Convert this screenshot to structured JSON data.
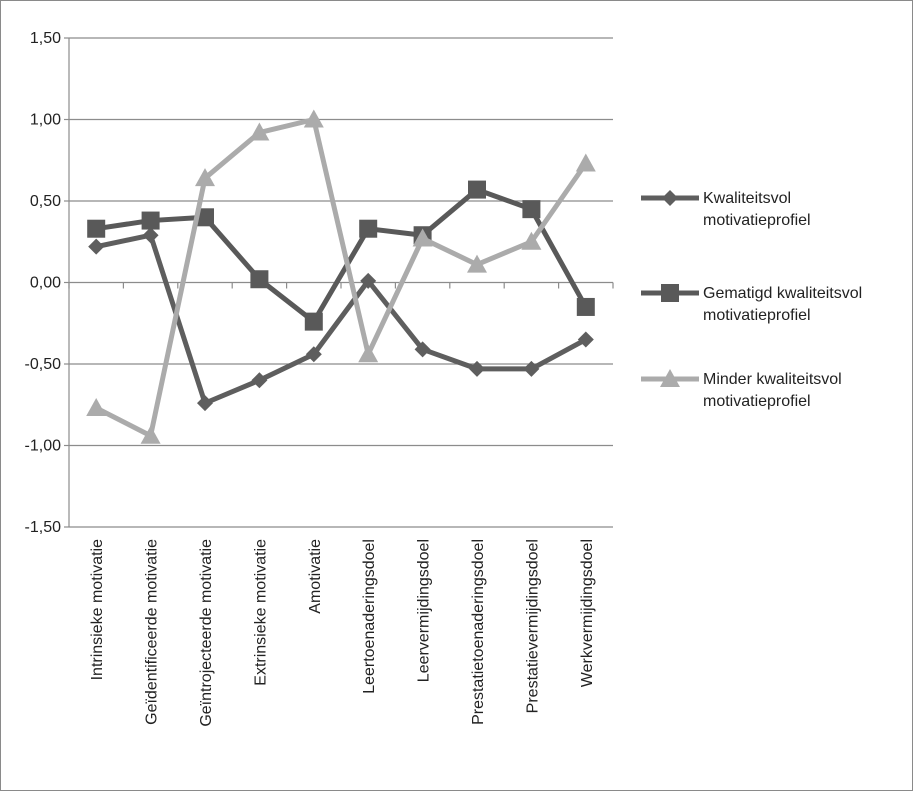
{
  "chart_data": {
    "type": "line",
    "categories": [
      "Intrinsieke motivatie",
      "Geïdentificeerde motivatie",
      "Geïntrojecteerde motivatie",
      "Extrinsieke motivatie",
      "Amotivatie",
      "Leertoenaderingsdoel",
      "Leervermijdingsdoel",
      "Prestatietoenaderingsdoel",
      "Prestatievermijdingsdoel",
      "Werkvermijdingsdoel"
    ],
    "y_tick_labels": [
      "1,50",
      "1,00",
      "0,50",
      "0,00",
      "-0,50",
      "-1,00",
      "-1,50"
    ],
    "ylim": [
      -1.5,
      1.5
    ],
    "grid": "horizontal",
    "legend_position": "right",
    "series": [
      {
        "name_lines": [
          "Kwaliteitsvol",
          "motivatieprofiel"
        ],
        "marker": "diamond",
        "color": "#5e5e5e",
        "values": [
          0.22,
          0.29,
          -0.74,
          -0.6,
          -0.44,
          0.01,
          -0.41,
          -0.53,
          -0.53,
          -0.35
        ]
      },
      {
        "name_lines": [
          "Gematigd kwaliteitsvol",
          "motivatieprofiel"
        ],
        "marker": "square",
        "color": "#595959",
        "values": [
          0.33,
          0.38,
          0.4,
          0.02,
          -0.24,
          0.33,
          0.29,
          0.57,
          0.45,
          -0.15
        ]
      },
      {
        "name_lines": [
          "Minder kwaliteitsvol",
          "motivatieprofiel"
        ],
        "marker": "triangle",
        "color": "#ababab",
        "values": [
          -0.77,
          -0.94,
          0.64,
          0.92,
          1.0,
          -0.44,
          0.27,
          0.11,
          0.25,
          0.73
        ]
      }
    ]
  }
}
